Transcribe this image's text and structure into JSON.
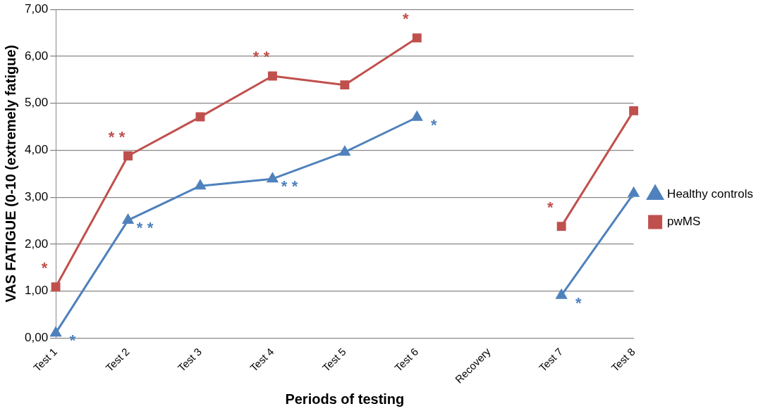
{
  "chart_data": {
    "type": "line",
    "xlabel": "Periods of testing",
    "ylabel": "VAS FATIGUE (0-10 (extremely fatigue)",
    "categories": [
      "Test 1",
      "Test 2",
      "Test 3",
      "Test 4",
      "Test 5",
      "Test 6",
      "Recovery",
      "Test 7",
      "Test 8"
    ],
    "series": [
      {
        "name": "Healthy controls",
        "color": "#4f81bd",
        "marker": "triangle",
        "values": [
          0.11,
          2.51,
          3.24,
          3.39,
          3.96,
          4.7,
          null,
          0.91,
          3.08
        ]
      },
      {
        "name": "pwMS",
        "color": "#c0504d",
        "marker": "square",
        "values": [
          1.09,
          3.88,
          4.71,
          5.58,
          5.39,
          6.39,
          null,
          2.38,
          4.84
        ]
      }
    ],
    "ylim": [
      0,
      7
    ],
    "yticks": [
      {
        "value": 0,
        "label": "0,00"
      },
      {
        "value": 1,
        "label": "1,00"
      },
      {
        "value": 2,
        "label": "2,00"
      },
      {
        "value": 3,
        "label": "3,00"
      },
      {
        "value": 4,
        "label": "4,00"
      },
      {
        "value": 5,
        "label": "5,00"
      },
      {
        "value": 6,
        "label": "6,00"
      },
      {
        "value": 7,
        "label": "7,00"
      }
    ],
    "grid": "y",
    "legend": "right",
    "line_style": "solid",
    "annotations": [
      {
        "text": "*",
        "x": "Test 1",
        "y": 1.09
      },
      {
        "text": "*",
        "x": "Test 1",
        "y": 0.11
      },
      {
        "text": "*",
        "x": "Test 2",
        "y": 3.88
      },
      {
        "text": "*",
        "x": "Test 2",
        "y": 3.88
      },
      {
        "text": "*",
        "x": "Test 2",
        "y": 2.51
      },
      {
        "text": "*",
        "x": "Test 2",
        "y": 2.51
      },
      {
        "text": "*",
        "x": "Test 4",
        "y": 5.58
      },
      {
        "text": "*",
        "x": "Test 4",
        "y": 5.58
      },
      {
        "text": "*",
        "x": "Test 4",
        "y": 3.39
      },
      {
        "text": "*",
        "x": "Test 4",
        "y": 3.39
      },
      {
        "text": "*",
        "x": "Test 6",
        "y": 6.39
      },
      {
        "text": "*",
        "x": "Test 6",
        "y": 4.7
      },
      {
        "text": "*",
        "x": "Test 7",
        "y": 2.38
      },
      {
        "text": "*",
        "x": "Test 7",
        "y": 0.91
      }
    ]
  }
}
